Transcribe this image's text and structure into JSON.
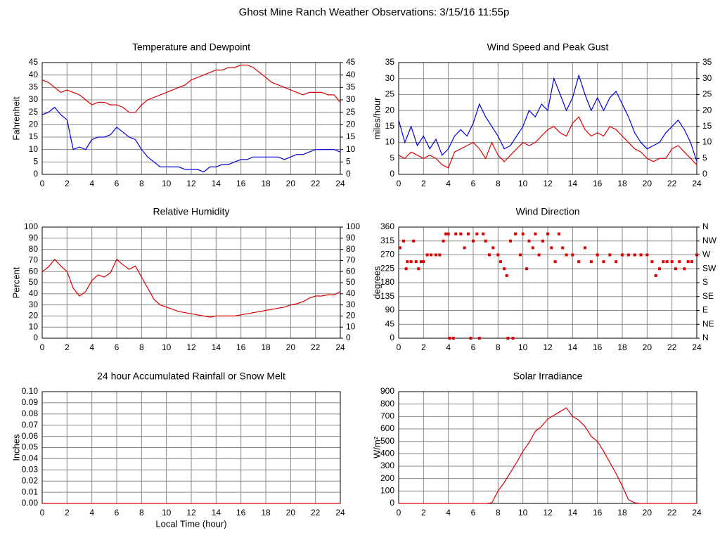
{
  "title": "Ghost Mine Ranch Weather Observations: 3/15/16 11:55p",
  "chart_data": [
    {
      "type": "line",
      "title": "Temperature and Dewpoint",
      "ylabel": "Fahrenheit",
      "x": [
        0,
        0.5,
        1,
        1.5,
        2,
        2.5,
        3,
        3.5,
        4,
        4.5,
        5,
        5.5,
        6,
        6.5,
        7,
        7.5,
        8,
        8.5,
        9,
        9.5,
        10,
        10.5,
        11,
        11.5,
        12,
        12.5,
        13,
        13.5,
        14,
        14.5,
        15,
        15.5,
        16,
        16.5,
        17,
        17.5,
        18,
        18.5,
        19,
        19.5,
        20,
        20.5,
        21,
        21.5,
        22,
        22.5,
        23,
        23.5,
        24
      ],
      "series": [
        {
          "color": "#dd0000",
          "values": [
            38,
            37,
            35,
            33,
            34,
            33,
            32,
            30,
            28,
            29,
            29,
            28,
            28,
            27,
            25,
            25,
            28,
            30,
            31,
            32,
            33,
            34,
            35,
            36,
            38,
            39,
            40,
            41,
            42,
            42,
            43,
            43,
            44,
            44,
            43,
            41,
            39,
            37,
            36,
            35,
            34,
            33,
            32,
            33,
            33,
            33,
            32,
            32,
            29
          ]
        },
        {
          "color": "#0000dd",
          "values": [
            24,
            25,
            27,
            24,
            22,
            10,
            11,
            10,
            14,
            15,
            15,
            16,
            19,
            17,
            15,
            14,
            10,
            7,
            5,
            3,
            3,
            3,
            3,
            2,
            2,
            2,
            1,
            3,
            3,
            4,
            4,
            5,
            6,
            6,
            7,
            7,
            7,
            7,
            7,
            6,
            7,
            8,
            8,
            9,
            10,
            10,
            10,
            10,
            9
          ]
        }
      ],
      "xlim": [
        0,
        24
      ],
      "xticks": [
        0,
        2,
        4,
        6,
        8,
        10,
        12,
        14,
        16,
        18,
        20,
        22,
        24
      ],
      "ylim": [
        0,
        45
      ],
      "yticks": [
        0,
        5,
        10,
        15,
        20,
        25,
        30,
        35,
        40,
        45
      ],
      "y2lim": [
        0,
        45
      ],
      "y2ticks": [
        0,
        5,
        10,
        15,
        20,
        25,
        30,
        35,
        40,
        45
      ],
      "grid": true
    },
    {
      "type": "line",
      "title": "Wind Speed and Peak Gust",
      "ylabel": "miles/hour",
      "x": [
        0,
        0.5,
        1,
        1.5,
        2,
        2.5,
        3,
        3.5,
        4,
        4.5,
        5,
        5.5,
        6,
        6.5,
        7,
        7.5,
        8,
        8.5,
        9,
        9.5,
        10,
        10.5,
        11,
        11.5,
        12,
        12.5,
        13,
        13.5,
        14,
        14.5,
        15,
        15.5,
        16,
        16.5,
        17,
        17.5,
        18,
        18.5,
        19,
        19.5,
        20,
        20.5,
        21,
        21.5,
        22,
        22.5,
        23,
        23.5,
        24
      ],
      "series": [
        {
          "color": "#0000dd",
          "values": [
            17,
            10,
            15,
            9,
            12,
            8,
            11,
            6,
            8,
            12,
            14,
            12,
            16,
            22,
            18,
            15,
            12,
            8,
            9,
            12,
            15,
            20,
            18,
            22,
            20,
            30,
            25,
            20,
            24,
            31,
            25,
            20,
            24,
            20,
            24,
            26,
            22,
            18,
            13,
            10,
            8,
            9,
            10,
            13,
            15,
            17,
            14,
            10,
            4
          ]
        },
        {
          "color": "#dd0000",
          "values": [
            6,
            5,
            7,
            6,
            5,
            6,
            5,
            3,
            2,
            7,
            8,
            9,
            10,
            8,
            5,
            10,
            6,
            4,
            6,
            8,
            10,
            9,
            10,
            12,
            14,
            15,
            13,
            12,
            16,
            18,
            14,
            12,
            13,
            12,
            15,
            14,
            12,
            10,
            8,
            7,
            5,
            4,
            5,
            5,
            8,
            9,
            7,
            5,
            3
          ]
        }
      ],
      "xlim": [
        0,
        24
      ],
      "xticks": [
        0,
        2,
        4,
        6,
        8,
        10,
        12,
        14,
        16,
        18,
        20,
        22,
        24
      ],
      "ylim": [
        0,
        35
      ],
      "yticks": [
        0,
        5,
        10,
        15,
        20,
        25,
        30,
        35
      ],
      "y2lim": [
        0,
        35
      ],
      "y2ticks": [
        0,
        5,
        10,
        15,
        20,
        25,
        30,
        35
      ],
      "grid": true
    },
    {
      "type": "line",
      "title": "Relative Humidity",
      "ylabel": "Percent",
      "x": [
        0,
        0.5,
        1,
        1.5,
        2,
        2.5,
        3,
        3.5,
        4,
        4.5,
        5,
        5.5,
        6,
        6.5,
        7,
        7.5,
        8,
        8.5,
        9,
        9.5,
        10,
        10.5,
        11,
        11.5,
        12,
        12.5,
        13,
        13.5,
        14,
        14.5,
        15,
        15.5,
        16,
        16.5,
        17,
        17.5,
        18,
        18.5,
        19,
        19.5,
        20,
        20.5,
        21,
        21.5,
        22,
        22.5,
        23,
        23.5,
        24
      ],
      "series": [
        {
          "color": "#dd0000",
          "values": [
            60,
            64,
            71,
            65,
            60,
            45,
            38,
            42,
            52,
            57,
            55,
            59,
            71,
            66,
            62,
            65,
            55,
            45,
            35,
            30,
            28,
            26,
            24,
            23,
            22,
            21,
            20,
            19,
            20,
            20,
            20,
            20,
            21,
            22,
            23,
            24,
            25,
            26,
            27,
            28,
            30,
            31,
            33,
            36,
            38,
            38,
            39,
            39,
            42
          ]
        }
      ],
      "xlim": [
        0,
        24
      ],
      "xticks": [
        0,
        2,
        4,
        6,
        8,
        10,
        12,
        14,
        16,
        18,
        20,
        22,
        24
      ],
      "ylim": [
        0,
        100
      ],
      "yticks": [
        0,
        10,
        20,
        30,
        40,
        50,
        60,
        70,
        80,
        90,
        100
      ],
      "y2lim": [
        0,
        100
      ],
      "y2ticks": [
        0,
        10,
        20,
        30,
        40,
        50,
        60,
        70,
        80,
        90,
        100
      ],
      "grid": true
    },
    {
      "type": "scatter",
      "title": "Wind Direction",
      "ylabel": "degrees",
      "color": "#dd0000",
      "x": [
        0.1,
        0.4,
        0.6,
        0.7,
        1,
        1.2,
        1.4,
        1.6,
        1.8,
        2,
        2.3,
        2.6,
        3,
        3.3,
        3.6,
        3.8,
        4,
        4.1,
        4.4,
        4.6,
        5,
        5.3,
        5.6,
        5.8,
        6,
        6.3,
        6.5,
        6.8,
        7,
        7.3,
        7.6,
        8,
        8.2,
        8.5,
        8.7,
        8.8,
        9,
        9.2,
        9.4,
        9.8,
        10,
        10.3,
        10.5,
        10.8,
        11,
        11.3,
        11.6,
        12,
        12.3,
        12.6,
        12.9,
        13.2,
        13.5,
        14,
        14.5,
        15,
        15.5,
        16,
        16.5,
        17,
        17.5,
        18,
        18.5,
        19,
        19.5,
        20,
        20.4,
        20.7,
        21,
        21.3,
        21.6,
        22,
        22.3,
        22.6,
        23,
        23.3,
        23.6,
        24
      ],
      "values": [
        293,
        315,
        225,
        248,
        248,
        315,
        248,
        225,
        248,
        248,
        270,
        270,
        270,
        270,
        315,
        338,
        338,
        0,
        0,
        338,
        338,
        293,
        338,
        0,
        315,
        338,
        0,
        338,
        315,
        270,
        293,
        270,
        248,
        225,
        203,
        0,
        315,
        0,
        338,
        270,
        338,
        225,
        315,
        293,
        338,
        270,
        315,
        338,
        293,
        248,
        338,
        293,
        270,
        270,
        248,
        293,
        248,
        270,
        248,
        270,
        248,
        270,
        270,
        270,
        270,
        270,
        248,
        203,
        225,
        248,
        248,
        248,
        225,
        248,
        225,
        248,
        248,
        270
      ],
      "xlim": [
        0,
        24
      ],
      "xticks": [
        0,
        2,
        4,
        6,
        8,
        10,
        12,
        14,
        16,
        18,
        20,
        22,
        24
      ],
      "ylim": [
        0,
        360
      ],
      "yticks": [
        0,
        45,
        90,
        135,
        180,
        225,
        270,
        315,
        360
      ],
      "y2lim": [
        0,
        360
      ],
      "y2ticks": [
        {
          "value": 0,
          "label": "N"
        },
        {
          "value": 45,
          "label": "NE"
        },
        {
          "value": 90,
          "label": "E"
        },
        {
          "value": 135,
          "label": "SE"
        },
        {
          "value": 180,
          "label": "S"
        },
        {
          "value": 225,
          "label": "SW"
        },
        {
          "value": 270,
          "label": "W"
        },
        {
          "value": 315,
          "label": "NW"
        },
        {
          "value": 360,
          "label": "N"
        }
      ],
      "grid": true
    },
    {
      "type": "line",
      "title": "24 hour Accumulated Rainfall or Snow Melt",
      "ylabel": "Inches",
      "xlabel": "Local Time (hour)",
      "x": [
        0,
        24
      ],
      "series": [
        {
          "color": "#dd0000",
          "values": [
            0,
            0
          ]
        }
      ],
      "xlim": [
        0,
        24
      ],
      "xticks": [
        0,
        2,
        4,
        6,
        8,
        10,
        12,
        14,
        16,
        18,
        20,
        22,
        24
      ],
      "ylim": [
        0,
        0.1
      ],
      "yticks": [
        {
          "value": 0,
          "label": "0.00"
        },
        {
          "value": 0.01,
          "label": "0.01"
        },
        {
          "value": 0.02,
          "label": "0.02"
        },
        {
          "value": 0.03,
          "label": "0.03"
        },
        {
          "value": 0.04,
          "label": "0.04"
        },
        {
          "value": 0.05,
          "label": "0.05"
        },
        {
          "value": 0.06,
          "label": "0.06"
        },
        {
          "value": 0.07,
          "label": "0.07"
        },
        {
          "value": 0.08,
          "label": "0.08"
        },
        {
          "value": 0.09,
          "label": "0.09"
        },
        {
          "value": 0.1,
          "label": "0.10"
        }
      ],
      "grid": true
    },
    {
      "type": "line",
      "title": "Solar Irradiance",
      "ylabel": "W/m²",
      "x": [
        0,
        0.5,
        1,
        1.5,
        2,
        2.5,
        3,
        3.5,
        4,
        4.5,
        5,
        5.5,
        6,
        6.5,
        7,
        7.5,
        8,
        8.5,
        9,
        9.5,
        10,
        10.5,
        11,
        11.5,
        12,
        12.5,
        13,
        13.5,
        14,
        14.5,
        15,
        15.5,
        16,
        16.5,
        17,
        17.5,
        18,
        18.5,
        19,
        19.5,
        20,
        20.5,
        21,
        21.5,
        22,
        22.5,
        23,
        23.5,
        24
      ],
      "series": [
        {
          "color": "#dd0000",
          "values": [
            0,
            0,
            0,
            0,
            0,
            0,
            0,
            0,
            0,
            0,
            0,
            0,
            0,
            0,
            0,
            5,
            100,
            170,
            250,
            330,
            420,
            490,
            580,
            620,
            680,
            710,
            740,
            770,
            700,
            670,
            620,
            540,
            500,
            420,
            330,
            240,
            140,
            30,
            5,
            0,
            0,
            0,
            0,
            0,
            0,
            0,
            0,
            0,
            0
          ]
        }
      ],
      "xlim": [
        0,
        24
      ],
      "xticks": [
        0,
        2,
        4,
        6,
        8,
        10,
        12,
        14,
        16,
        18,
        20,
        22,
        24
      ],
      "ylim": [
        0,
        900
      ],
      "yticks": [
        0,
        100,
        200,
        300,
        400,
        500,
        600,
        700,
        800,
        900
      ],
      "grid": true
    }
  ]
}
